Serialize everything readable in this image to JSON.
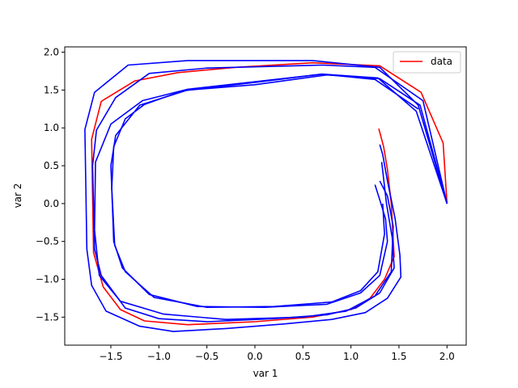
{
  "chart_data": {
    "type": "line",
    "title": "",
    "xlabel": "var 1",
    "ylabel": "var 2",
    "xlim": [
      -1.98,
      2.2
    ],
    "ylim": [
      -1.87,
      2.07
    ],
    "xticks": [
      -1.5,
      -1.0,
      -0.5,
      0.0,
      0.5,
      1.0,
      1.5,
      2.0
    ],
    "xtick_labels": [
      "−1.5",
      "−1.0",
      "−0.5",
      "0.0",
      "0.5",
      "1.0",
      "1.5",
      "2.0"
    ],
    "yticks": [
      -1.5,
      -1.0,
      -0.5,
      0.0,
      0.5,
      1.0,
      1.5,
      2.0
    ],
    "ytick_labels": [
      "−1.5",
      "−1.0",
      "−0.5",
      "0.0",
      "0.5",
      "1.0",
      "1.5",
      "2.0"
    ],
    "grid": false,
    "legend": {
      "position": "top-right"
    },
    "series": [
      {
        "name": "data",
        "color": "#ff0000",
        "x": [
          2.0,
          1.96,
          1.73,
          1.3,
          0.6,
          -0.2,
          -0.8,
          -1.25,
          -1.6,
          -1.7,
          -1.68,
          -1.58,
          -1.4,
          -1.15,
          -0.7,
          0.0,
          0.6,
          1.0,
          1.2,
          1.35,
          1.45,
          1.42,
          1.38,
          1.34,
          1.29
        ],
        "y": [
          0.0,
          0.8,
          1.47,
          1.82,
          1.86,
          1.8,
          1.73,
          1.62,
          1.35,
          0.85,
          -0.65,
          -1.1,
          -1.4,
          -1.55,
          -1.6,
          -1.56,
          -1.5,
          -1.4,
          -1.25,
          -1.0,
          -0.7,
          0.0,
          0.45,
          0.75,
          0.99
        ]
      },
      {
        "name": "",
        "color": "#0000ff",
        "x": [
          2.0,
          1.7,
          1.3,
          0.6,
          -0.7,
          -1.32,
          -1.67,
          -1.77,
          -1.75,
          -1.7,
          -1.55,
          -1.2,
          -0.85,
          -0.3,
          0.3,
          0.8,
          1.15,
          1.38,
          1.52,
          1.51,
          1.46,
          1.38,
          1.33,
          1.3
        ],
        "y": [
          0.0,
          1.3,
          1.8,
          1.89,
          1.89,
          1.83,
          1.47,
          0.98,
          -0.6,
          -1.08,
          -1.42,
          -1.62,
          -1.69,
          -1.65,
          -1.59,
          -1.53,
          -1.44,
          -1.25,
          -0.97,
          -0.68,
          -0.2,
          0.3,
          0.65,
          0.78
        ]
      },
      {
        "name": "",
        "color": "#0000ff",
        "x": [
          2.0,
          1.75,
          1.25,
          0.7,
          -0.5,
          -1.1,
          -1.45,
          -1.65,
          -1.69,
          -1.67,
          -1.6,
          -1.35,
          -1.0,
          -0.5,
          0.2,
          0.75,
          1.05,
          1.3,
          1.45,
          1.43,
          1.37,
          1.32
        ],
        "y": [
          0.0,
          1.36,
          1.8,
          1.83,
          1.79,
          1.72,
          1.4,
          0.97,
          0.5,
          -0.6,
          -0.95,
          -1.38,
          -1.52,
          -1.56,
          -1.52,
          -1.47,
          -1.38,
          -1.18,
          -0.85,
          -0.45,
          0.0,
          0.55
        ]
      },
      {
        "name": "",
        "color": "#0000ff",
        "x": [
          2.0,
          1.68,
          1.28,
          0.7,
          -0.7,
          -1.17,
          -1.5,
          -1.66,
          -1.67,
          -1.62,
          -1.4,
          -0.95,
          -0.3,
          0.5,
          0.95,
          1.25,
          1.42,
          1.44,
          1.38,
          1.3
        ],
        "y": [
          0.0,
          1.22,
          1.66,
          1.71,
          1.51,
          1.36,
          1.05,
          0.55,
          -0.35,
          -0.95,
          -1.29,
          -1.46,
          -1.53,
          -1.5,
          -1.42,
          -1.22,
          -0.9,
          -0.3,
          0.1,
          0.3
        ]
      },
      {
        "name": "",
        "color": "#0000ff",
        "x": [
          2.0,
          1.72,
          1.3,
          0.75,
          0.0,
          -0.7,
          -1.2,
          -1.45,
          -1.5,
          -1.47,
          -1.38,
          -1.1,
          -0.6,
          0.1,
          0.75,
          1.1,
          1.3,
          1.38,
          1.36,
          1.3,
          1.25
        ],
        "y": [
          0.0,
          1.3,
          1.65,
          1.7,
          1.57,
          1.5,
          1.3,
          0.9,
          0.5,
          -0.5,
          -0.85,
          -1.2,
          -1.36,
          -1.37,
          -1.33,
          -1.18,
          -0.95,
          -0.5,
          -0.2,
          0.05,
          0.25
        ]
      },
      {
        "name": "",
        "color": "#0000ff",
        "x": [
          1.7,
          1.25,
          0.7,
          0.0,
          -0.75,
          -1.15,
          -1.35,
          -1.47,
          -1.49,
          -1.46,
          -1.35,
          -1.05,
          -0.5,
          0.2,
          0.8,
          1.1,
          1.28,
          1.35,
          1.33
        ],
        "y": [
          1.25,
          1.64,
          1.71,
          1.6,
          1.49,
          1.31,
          1.12,
          0.75,
          0.2,
          -0.55,
          -0.9,
          -1.24,
          -1.37,
          -1.36,
          -1.3,
          -1.15,
          -0.9,
          -0.4,
          0.0
        ]
      }
    ]
  }
}
